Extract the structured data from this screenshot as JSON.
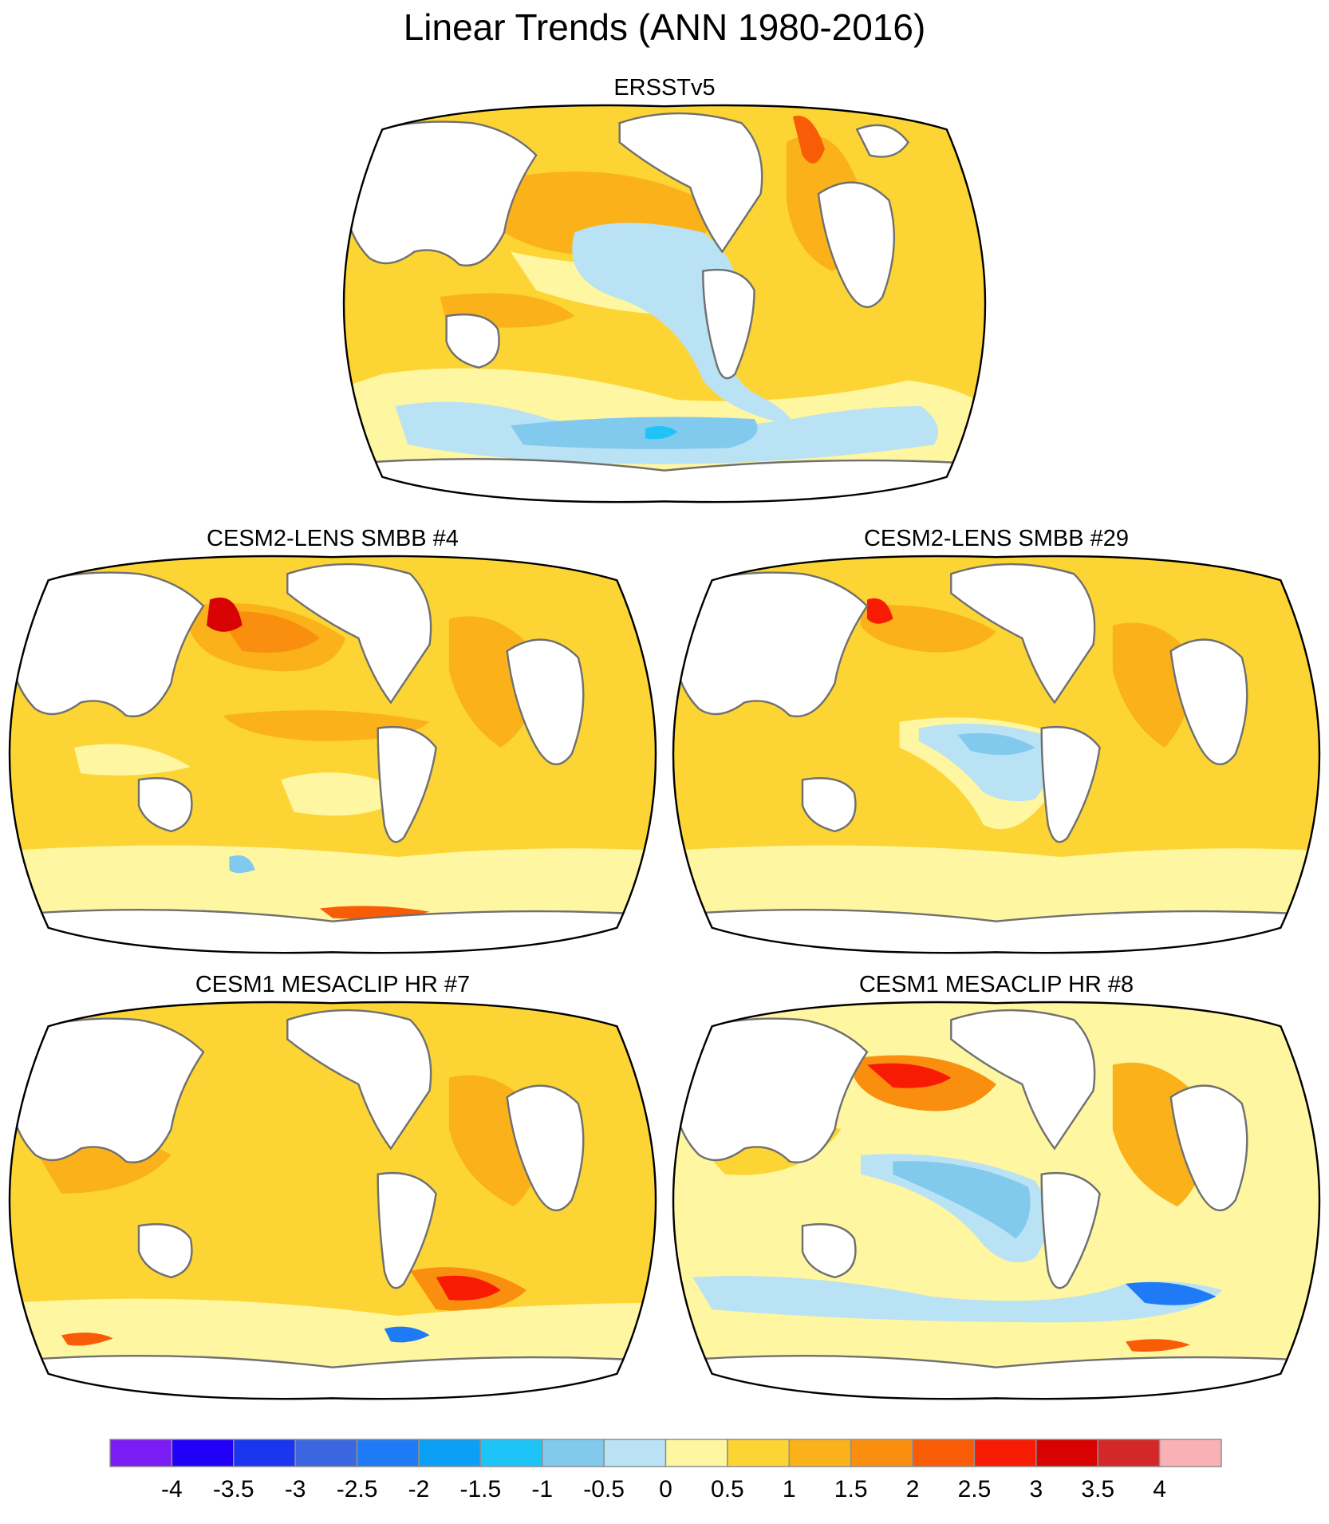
{
  "title": "Linear Trends (ANN 1980-2016)",
  "panels": [
    {
      "id": "p0",
      "title": "ERSSTv5"
    },
    {
      "id": "p1",
      "title": "CESM2-LENS SMBB #4"
    },
    {
      "id": "p2",
      "title": "CESM2-LENS SMBB #29"
    },
    {
      "id": "p3",
      "title": "CESM1 MESACLIP HR #7"
    },
    {
      "id": "p4",
      "title": "CESM1 MESACLIP HR #8"
    }
  ],
  "colorbar": {
    "tick_labels": [
      "-4",
      "-3.5",
      "-3",
      "-2.5",
      "-2",
      "-1.5",
      "-1",
      "-0.5",
      "0",
      "0.5",
      "1",
      "1.5",
      "2",
      "2.5",
      "3",
      "3.5",
      "4"
    ],
    "colors": [
      "#7b1cf5",
      "#2100f8",
      "#1a35f0",
      "#3a66e0",
      "#1e7bf5",
      "#0ba0f5",
      "#1ec3f7",
      "#82c9ee",
      "#b9e2f4",
      "#fef6a0",
      "#fcd535",
      "#fbb21a",
      "#f98e0f",
      "#f95c06",
      "#f81b04",
      "#d90202",
      "#d42828",
      "#f9b1b5"
    ]
  },
  "colors": {
    "land": "#ffffff",
    "coast": "#707070",
    "border": "#000000"
  }
}
